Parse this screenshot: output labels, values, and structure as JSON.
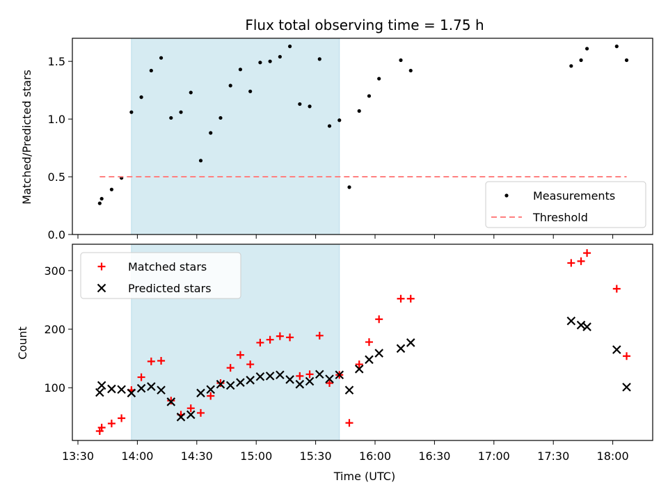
{
  "chart_data": {
    "title": "Flux total observing time = 1.75 h",
    "xlabel": "Time (UTC)",
    "x_ticks": [
      "13:30",
      "14:00",
      "14:30",
      "15:00",
      "15:30",
      "16:00",
      "16:30",
      "17:00",
      "17:30",
      "18:00"
    ],
    "shaded_interval": {
      "start": "13:57",
      "end": "15:42",
      "color": "#add8e6"
    },
    "panels": [
      {
        "type": "scatter",
        "ylabel": "Matched/Predicted stars",
        "ylim": [
          0,
          1.7
        ],
        "y_ticks": [
          "0.0",
          "0.5",
          "1.0",
          "1.5"
        ],
        "y_tick_values": [
          0,
          0.5,
          1.0,
          1.5
        ],
        "legend": {
          "placement": "lower-right",
          "entries": [
            "Measurements",
            "Threshold"
          ]
        },
        "series": [
          {
            "name": "Measurements",
            "marker": "dot",
            "color": "#000000",
            "points": [
              [
                "13:41",
                0.27
              ],
              [
                "13:42",
                0.31
              ],
              [
                "13:47",
                0.39
              ],
              [
                "13:52",
                0.49
              ],
              [
                "13:57",
                1.06
              ],
              [
                "14:02",
                1.19
              ],
              [
                "14:07",
                1.42
              ],
              [
                "14:12",
                1.53
              ],
              [
                "14:17",
                1.01
              ],
              [
                "14:22",
                1.06
              ],
              [
                "14:27",
                1.23
              ],
              [
                "14:32",
                0.64
              ],
              [
                "14:37",
                0.88
              ],
              [
                "14:42",
                1.01
              ],
              [
                "14:47",
                1.29
              ],
              [
                "14:52",
                1.43
              ],
              [
                "14:57",
                1.24
              ],
              [
                "15:02",
                1.49
              ],
              [
                "15:07",
                1.5
              ],
              [
                "15:12",
                1.54
              ],
              [
                "15:17",
                1.63
              ],
              [
                "15:22",
                1.13
              ],
              [
                "15:27",
                1.11
              ],
              [
                "15:32",
                1.52
              ],
              [
                "15:37",
                0.94
              ],
              [
                "15:42",
                0.99
              ],
              [
                "15:47",
                0.41
              ],
              [
                "15:52",
                1.07
              ],
              [
                "15:57",
                1.2
              ],
              [
                "16:02",
                1.35
              ],
              [
                "16:13",
                1.51
              ],
              [
                "16:18",
                1.42
              ],
              [
                "17:39",
                1.46
              ],
              [
                "17:44",
                1.51
              ],
              [
                "17:47",
                1.61
              ],
              [
                "18:02",
                1.63
              ],
              [
                "18:07",
                1.51
              ]
            ]
          },
          {
            "name": "Threshold",
            "marker": "dashed-line",
            "color": "#ff7f7f",
            "points": [
              [
                "13:41",
                0.5
              ],
              [
                "18:07",
                0.5
              ]
            ]
          }
        ]
      },
      {
        "type": "scatter",
        "ylabel": "Count",
        "ylim": [
          10,
          345
        ],
        "y_ticks": [
          "100",
          "200",
          "300"
        ],
        "y_tick_values": [
          100,
          200,
          300
        ],
        "legend": {
          "placement": "upper-left",
          "entries": [
            "Matched stars",
            "Predicted stars"
          ]
        },
        "series": [
          {
            "name": "Matched stars",
            "marker": "plus",
            "color": "#ff0000",
            "points": [
              [
                "13:41",
                26
              ],
              [
                "13:42",
                32
              ],
              [
                "13:47",
                39
              ],
              [
                "13:52",
                48
              ],
              [
                "13:57",
                96
              ],
              [
                "14:02",
                118
              ],
              [
                "14:07",
                145
              ],
              [
                "14:12",
                146
              ],
              [
                "14:17",
                78
              ],
              [
                "14:22",
                54
              ],
              [
                "14:27",
                65
              ],
              [
                "14:32",
                57
              ],
              [
                "14:37",
                86
              ],
              [
                "14:42",
                108
              ],
              [
                "14:47",
                134
              ],
              [
                "14:52",
                156
              ],
              [
                "14:57",
                140
              ],
              [
                "15:02",
                177
              ],
              [
                "15:07",
                182
              ],
              [
                "15:12",
                188
              ],
              [
                "15:17",
                186
              ],
              [
                "15:22",
                120
              ],
              [
                "15:27",
                123
              ],
              [
                "15:32",
                189
              ],
              [
                "15:37",
                108
              ],
              [
                "15:42",
                122
              ],
              [
                "15:47",
                40
              ],
              [
                "15:52",
                140
              ],
              [
                "15:57",
                178
              ],
              [
                "16:02",
                217
              ],
              [
                "16:13",
                252
              ],
              [
                "16:18",
                252
              ],
              [
                "17:39",
                313
              ],
              [
                "17:44",
                316
              ],
              [
                "17:47",
                330
              ],
              [
                "18:02",
                269
              ],
              [
                "18:07",
                154
              ]
            ]
          },
          {
            "name": "Predicted stars",
            "marker": "cross",
            "color": "#000000",
            "points": [
              [
                "13:41",
                92
              ],
              [
                "13:42",
                104
              ],
              [
                "13:47",
                98
              ],
              [
                "13:52",
                97
              ],
              [
                "13:57",
                91
              ],
              [
                "14:02",
                99
              ],
              [
                "14:07",
                102
              ],
              [
                "14:12",
                96
              ],
              [
                "14:17",
                76
              ],
              [
                "14:22",
                50
              ],
              [
                "14:27",
                54
              ],
              [
                "14:32",
                91
              ],
              [
                "14:37",
                97
              ],
              [
                "14:42",
                106
              ],
              [
                "14:47",
                104
              ],
              [
                "14:52",
                109
              ],
              [
                "14:57",
                113
              ],
              [
                "15:02",
                119
              ],
              [
                "15:07",
                120
              ],
              [
                "15:12",
                122
              ],
              [
                "15:17",
                114
              ],
              [
                "15:22",
                106
              ],
              [
                "15:27",
                111
              ],
              [
                "15:32",
                123
              ],
              [
                "15:37",
                115
              ],
              [
                "15:42",
                122
              ],
              [
                "15:47",
                96
              ],
              [
                "15:52",
                132
              ],
              [
                "15:57",
                148
              ],
              [
                "16:02",
                159
              ],
              [
                "16:13",
                167
              ],
              [
                "16:18",
                177
              ],
              [
                "17:39",
                214
              ],
              [
                "17:44",
                207
              ],
              [
                "17:47",
                204
              ],
              [
                "18:02",
                165
              ],
              [
                "18:07",
                101
              ]
            ]
          }
        ]
      }
    ]
  }
}
